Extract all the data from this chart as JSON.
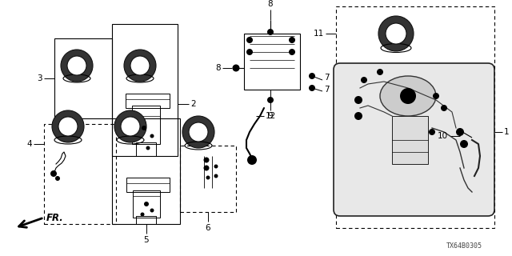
{
  "diagram_id": "TX64B0305",
  "bg_color": "#ffffff",
  "line_color": "#000000",
  "fig_width": 6.4,
  "fig_height": 3.2,
  "dpi": 100
}
